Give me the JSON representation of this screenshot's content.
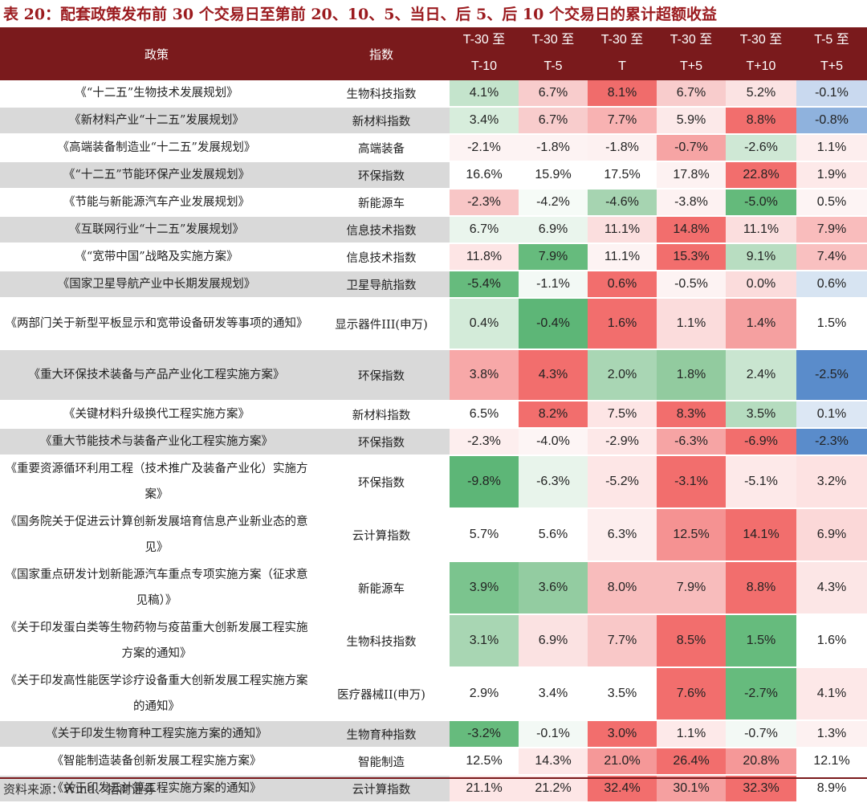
{
  "title": "表 20：配套政策发布前 30 个交易日至第前 20、10、5、当日、后 5、后 10 个交易日的累计超额收益",
  "headers": {
    "policy": "政策",
    "index": "指数",
    "cols": [
      {
        "top": "T-30 至",
        "bottom": "T-10"
      },
      {
        "top": "T-30 至",
        "bottom": "T-5"
      },
      {
        "top": "T-30 至",
        "bottom": "T"
      },
      {
        "top": "T-30 至",
        "bottom": "T+5"
      },
      {
        "top": "T-30 至",
        "bottom": "T+10"
      },
      {
        "top": "T-5 至",
        "bottom": "T+5"
      }
    ]
  },
  "rows": [
    {
      "policy": "《“十二五”生物技术发展规划》",
      "index": "生物科技指数",
      "values": [
        "4.1%",
        "6.7%",
        "8.1%",
        "6.7%",
        "5.2%",
        "-0.1%"
      ],
      "colors": [
        "#c4e4cc",
        "#f8cccc",
        "#f06c6b",
        "#f8cccc",
        "#fbe3e3",
        "#c9d9ef"
      ]
    },
    {
      "policy": "《新材料产业“十二五”发展规划》",
      "index": "新材料指数",
      "values": [
        "3.4%",
        "6.7%",
        "7.7%",
        "5.9%",
        "8.8%",
        "-0.8%"
      ],
      "colors": [
        "#d7eddc",
        "#f8cccc",
        "#f8b2b2",
        "#fce9e9",
        "#f26e6d",
        "#8fb2dd"
      ]
    },
    {
      "policy": "《高端装备制造业“十二五”发展规划》",
      "index": "高端装备",
      "values": [
        "-2.1%",
        "-1.8%",
        "-1.8%",
        "-0.7%",
        "-2.6%",
        "1.1%"
      ],
      "colors": [
        "#fdf3f3",
        "#fdf3f3",
        "#fdf1f1",
        "#f6a4a4",
        "#cfe8d5",
        "#fdeeee"
      ]
    },
    {
      "policy": "《“十二五”节能环保产业发展规划》",
      "index": "环保指数",
      "values": [
        "16.6%",
        "15.9%",
        "17.5%",
        "17.8%",
        "22.8%",
        "1.9%"
      ],
      "colors": [
        "#ffffff",
        "#ffffff",
        "#ffffff",
        "#fdf2f2",
        "#f26e6d",
        "#fde9e9"
      ]
    },
    {
      "policy": "《节能与新能源汽车产业发展规划》",
      "index": "新能源车",
      "values": [
        "-2.3%",
        "-4.2%",
        "-4.6%",
        "-3.8%",
        "-5.0%",
        "0.5%"
      ],
      "colors": [
        "#f8c6c6",
        "#f6fbf7",
        "#a6d4b1",
        "#fdf2f2",
        "#64ba7b",
        "#fdf4f4"
      ]
    },
    {
      "policy": "《互联网行业“十二五”发展规划》",
      "index": "信息技术指数",
      "values": [
        "6.7%",
        "6.9%",
        "11.1%",
        "14.8%",
        "11.1%",
        "7.9%"
      ],
      "colors": [
        "#eaf5ed",
        "#eaf5ed",
        "#fbdede",
        "#f26e6d",
        "#fbdede",
        "#f9bcbc"
      ]
    },
    {
      "policy": "《“宽带中国”战略及实施方案》",
      "index": "信息技术指数",
      "values": [
        "11.8%",
        "7.9%",
        "11.1%",
        "15.3%",
        "9.1%",
        "7.4%"
      ],
      "colors": [
        "#fde5e5",
        "#66bb7d",
        "#fdf3f3",
        "#f26e6d",
        "#b8ddc1",
        "#f9c0c0"
      ]
    },
    {
      "policy": "《国家卫星导航产业中长期发展规划》",
      "index": "卫星导航指数",
      "values": [
        "-5.4%",
        "-1.1%",
        "0.6%",
        "-0.5%",
        "0.0%",
        "0.6%"
      ],
      "colors": [
        "#66bb7d",
        "#f3f9f5",
        "#f26e6d",
        "#fdf3f3",
        "#fbdcdc",
        "#d7e4f2"
      ]
    },
    {
      "policy": "《两部门关于新型平板显示和宽带设备研发等事项的通知》",
      "index": "显示器件III(申万)",
      "values": [
        "0.4%",
        "-0.4%",
        "1.6%",
        "1.1%",
        "1.4%",
        "1.5%"
      ],
      "colors": [
        "#d3ebd9",
        "#5db677",
        "#f26e6d",
        "#fbdcdc",
        "#f5a0a0",
        "#ffffff"
      ]
    },
    {
      "policy": "《重大环保技术装备与产品产业化工程实施方案》",
      "index": "环保指数",
      "values": [
        "3.8%",
        "4.3%",
        "2.0%",
        "1.8%",
        "2.4%",
        "-2.5%"
      ],
      "colors": [
        "#f7a8a8",
        "#f26e6d",
        "#a9d6b4",
        "#92cb9f",
        "#c9e5d0",
        "#5a8ccb"
      ]
    },
    {
      "policy": "《关键材料升级换代工程实施方案》",
      "index": "新材料指数",
      "values": [
        "6.5%",
        "8.2%",
        "7.5%",
        "8.3%",
        "3.5%",
        "0.1%"
      ],
      "colors": [
        "#ffffff",
        "#f26e6d",
        "#fde5e5",
        "#f26e6d",
        "#b5dcbf",
        "#dce7f4"
      ]
    },
    {
      "policy": "《重大节能技术与装备产业化工程实施方案》",
      "index": "环保指数",
      "values": [
        "-2.3%",
        "-4.0%",
        "-2.9%",
        "-6.3%",
        "-6.9%",
        "-2.3%"
      ],
      "colors": [
        "#fdeeee",
        "#fdf5f5",
        "#fde8e8",
        "#f6a4a4",
        "#f26e6d",
        "#5a8ccb"
      ]
    },
    {
      "policy": "《重要资源循环利用工程（技术推广及装备产业化）实施方案》",
      "index": "环保指数",
      "values": [
        "-9.8%",
        "-6.3%",
        "-5.2%",
        "-3.1%",
        "-5.1%",
        "3.2%"
      ],
      "colors": [
        "#5db677",
        "#e8f4eb",
        "#fde6e6",
        "#f26e6d",
        "#fde9e9",
        "#fde2e2"
      ]
    },
    {
      "policy": "《国务院关于促进云计算创新发展培育信息产业新业态的意见》",
      "index": "云计算指数",
      "values": [
        "5.7%",
        "5.6%",
        "6.3%",
        "12.5%",
        "14.1%",
        "6.9%"
      ],
      "colors": [
        "#ffffff",
        "#ffffff",
        "#fdeeee",
        "#f59292",
        "#f26e6d",
        "#fbd8d8"
      ]
    },
    {
      "policy": "《国家重点研发计划新能源汽车重点专项实施方案（征求意见稿）》",
      "index": "新能源车",
      "values": [
        "3.9%",
        "3.6%",
        "8.0%",
        "7.9%",
        "8.8%",
        "4.3%"
      ],
      "colors": [
        "#7bc48e",
        "#93cca1",
        "#f8bcbc",
        "#f8bcbc",
        "#f26e6d",
        "#fce6e6"
      ]
    },
    {
      "policy": "《关于印发蛋白类等生物药物与疫苗重大创新发展工程实施方案的通知》",
      "index": "生物科技指数",
      "values": [
        "3.1%",
        "6.9%",
        "7.7%",
        "8.5%",
        "1.5%",
        "1.6%"
      ],
      "colors": [
        "#a8d6b3",
        "#fbe2e2",
        "#f9c8c8",
        "#f26e6d",
        "#66bb7d",
        "#ffffff"
      ]
    },
    {
      "policy": "《关于印发高性能医学诊疗设备重大创新发展工程实施方案的通知》",
      "index": "医疗器械II(申万)",
      "values": [
        "2.9%",
        "3.4%",
        "3.5%",
        "7.6%",
        "-2.7%",
        "4.1%"
      ],
      "colors": [
        "#ffffff",
        "#ffffff",
        "#ffffff",
        "#f26e6d",
        "#66bb7d",
        "#fde8e8"
      ]
    },
    {
      "policy": "《关于印发生物育种工程实施方案的通知》",
      "index": "生物育种指数",
      "values": [
        "-3.2%",
        "-0.1%",
        "3.0%",
        "1.1%",
        "-0.7%",
        "1.3%"
      ],
      "colors": [
        "#66bb7d",
        "#f3f9f5",
        "#f26e6d",
        "#fde9e9",
        "#f3f9f5",
        "#fdf1f1"
      ]
    },
    {
      "policy": "《智能制造装备创新发展工程实施方案》",
      "index": "智能制造",
      "values": [
        "12.5%",
        "14.3%",
        "21.0%",
        "26.4%",
        "20.8%",
        "12.1%"
      ],
      "colors": [
        "#ffffff",
        "#fde8e8",
        "#f59898",
        "#f26e6d",
        "#f59898",
        "#ffffff"
      ]
    },
    {
      "policy": "《关于印发云计算工程实施方案的通知》",
      "index": "云计算指数",
      "values": [
        "21.1%",
        "21.2%",
        "32.4%",
        "30.1%",
        "32.3%",
        "8.9%"
      ],
      "colors": [
        "#fde6e6",
        "#fde6e6",
        "#f26e6d",
        "#f5a0a0",
        "#f26e6d",
        "#ffffff"
      ]
    }
  ],
  "source": "资料来源：Wind、招商证券"
}
